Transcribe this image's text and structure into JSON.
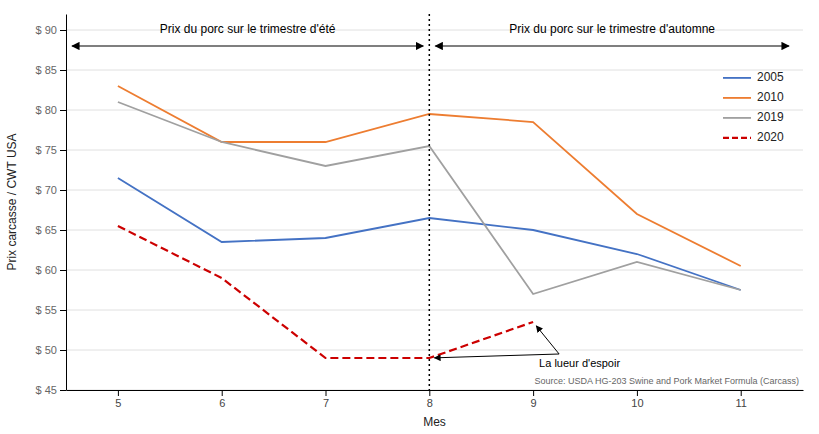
{
  "chart_data": {
    "type": "line",
    "x_label": "Mes",
    "y_label": "Prix carcasse / CWT USA",
    "x": [
      5,
      6,
      7,
      8,
      9,
      10,
      11
    ],
    "series": [
      {
        "name": "2005",
        "color": "#4472C4",
        "line_style": "solid",
        "values": [
          71.5,
          63.5,
          64.0,
          66.5,
          65.0,
          62.0,
          57.5
        ]
      },
      {
        "name": "2010",
        "color": "#ED7D31",
        "line_style": "solid",
        "values": [
          83.0,
          76.0,
          76.0,
          79.5,
          78.5,
          67.0,
          60.5
        ]
      },
      {
        "name": "2019",
        "color": "#A0A0A0",
        "line_style": "solid",
        "values": [
          81.0,
          76.0,
          73.0,
          75.5,
          57.0,
          61.0,
          57.5
        ]
      },
      {
        "name": "2020",
        "color": "#CC0000",
        "line_style": "dashed",
        "values": [
          65.5,
          59.0,
          49.0,
          49.0,
          53.5,
          null,
          null
        ]
      }
    ],
    "xlim": [
      4.5,
      11.6
    ],
    "xticks": [
      5,
      6,
      7,
      8,
      9,
      10,
      11
    ],
    "ylim": [
      45,
      92
    ],
    "yticks": [
      {
        "value": 45,
        "label": "$ 45"
      },
      {
        "value": 50,
        "label": "$ 50"
      },
      {
        "value": 55,
        "label": "$ 55"
      },
      {
        "value": 60,
        "label": "$ 60"
      },
      {
        "value": 65,
        "label": "$ 65"
      },
      {
        "value": 70,
        "label": "$ 70"
      },
      {
        "value": 75,
        "label": "$ 75"
      },
      {
        "value": 80,
        "label": "$ 80"
      },
      {
        "value": 85,
        "label": "$ 85"
      },
      {
        "value": 90,
        "label": "$ 90"
      }
    ],
    "grid": "y",
    "legend": "right",
    "divider_x": 8,
    "annotations": [
      {
        "text": "Prix du porc sur le trimestre d'été"
      },
      {
        "text": "Prix du porc sur le trimestre d'automne"
      },
      {
        "text": "La lueur d'espoir",
        "series": "2020"
      }
    ],
    "source": "Source: USDA HG-203 Swine and Pork Market Formula (Carcass)"
  }
}
